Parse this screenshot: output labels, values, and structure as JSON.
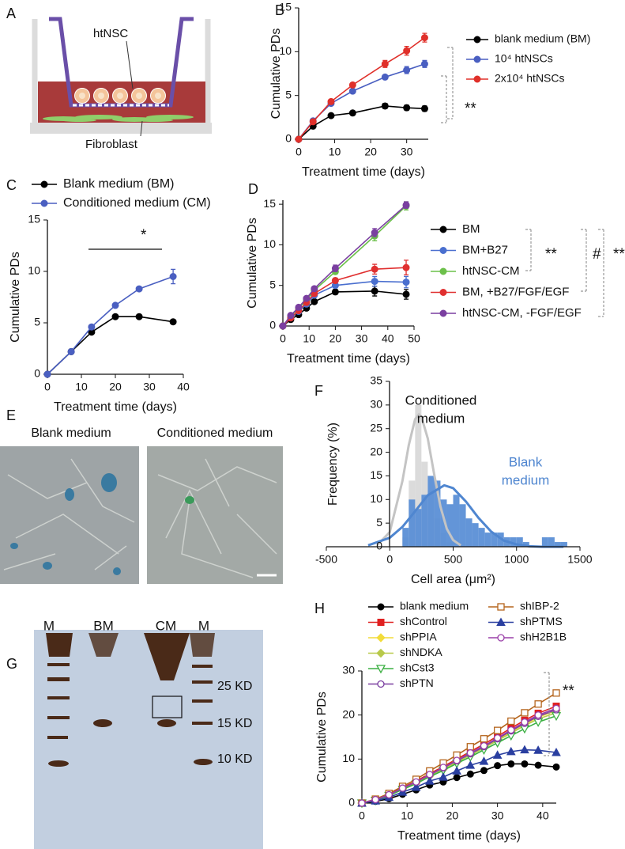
{
  "panel_labels": [
    "A",
    "B",
    "C",
    "D",
    "E",
    "F",
    "G",
    "H"
  ],
  "diagram": {
    "cell_label": "htNSC",
    "layer_label": "Fibroblast"
  },
  "micrographs": {
    "titles": [
      "Blank medium",
      "Conditioned medium"
    ]
  },
  "gel": {
    "lane_labels": [
      "M",
      "BM",
      "CM",
      "M"
    ],
    "marker_labels": [
      "25 KD",
      "15 KD",
      "10 KD"
    ]
  },
  "chart_data": [
    {
      "type": "line",
      "x": [
        0,
        4,
        9,
        15,
        24,
        30,
        35
      ],
      "xlim": [
        0,
        36
      ],
      "xticks": [
        0,
        10,
        20,
        30
      ],
      "ylim": [
        0,
        15
      ],
      "yticks": [
        0,
        5,
        10,
        15
      ],
      "xlabel": "Treatment time (days)",
      "ylabel": "Cumulative PDs",
      "annotations": [
        "**"
      ],
      "series": [
        {
          "name": "blank medium (BM)",
          "color": "#000000",
          "marker": "circle",
          "values": [
            0,
            1.5,
            2.7,
            3.0,
            3.8,
            3.6,
            3.5
          ],
          "errors": [
            0,
            0.1,
            0.1,
            0.2,
            0.3,
            0.3,
            0.3
          ]
        },
        {
          "name": "10⁴ htNSCs",
          "color": "#4a5fc1",
          "marker": "circle",
          "values": [
            0,
            2.1,
            4.1,
            5.5,
            7.1,
            7.9,
            8.6
          ],
          "errors": [
            0,
            0.1,
            0.2,
            0.2,
            0.2,
            0.4,
            0.4
          ]
        },
        {
          "name": "2x10⁴ htNSCs",
          "color": "#e0302a",
          "marker": "circle",
          "values": [
            0,
            2.0,
            4.3,
            6.2,
            8.6,
            10.1,
            11.6
          ],
          "errors": [
            0,
            0.1,
            0.2,
            0.2,
            0.4,
            0.5,
            0.5
          ]
        }
      ]
    },
    {
      "type": "line",
      "x": [
        0,
        7,
        13,
        20,
        27,
        37
      ],
      "xlim": [
        0,
        40
      ],
      "xticks": [
        0,
        10,
        20,
        30,
        40
      ],
      "ylim": [
        0,
        15
      ],
      "yticks": [
        0,
        5,
        10,
        15
      ],
      "xlabel": "Treatment time (days)",
      "ylabel": "Cumulative PDs",
      "annotations": [
        "*"
      ],
      "series": [
        {
          "name": "Blank medium (BM)",
          "color": "#000000",
          "marker": "circle",
          "values": [
            0,
            2.2,
            4.1,
            5.6,
            5.6,
            5.1
          ],
          "errors": [
            0,
            0.1,
            0.1,
            0.2,
            0.2,
            0.2
          ]
        },
        {
          "name": "Conditioned medium (CM)",
          "color": "#4a5fc1",
          "marker": "circle",
          "values": [
            0,
            2.2,
            4.6,
            6.7,
            8.3,
            9.5
          ],
          "errors": [
            0,
            0.1,
            0.2,
            0.2,
            0.2,
            0.7
          ]
        }
      ]
    },
    {
      "type": "line",
      "x": [
        0,
        3,
        6,
        9,
        12,
        20,
        35,
        47
      ],
      "xlim": [
        0,
        50
      ],
      "xticks": [
        0,
        10,
        20,
        30,
        40,
        50
      ],
      "ylim": [
        0,
        15.5
      ],
      "yticks": [
        0,
        5,
        10,
        15
      ],
      "xlabel": "Treatment time (days)",
      "ylabel": "Cumulative PDs",
      "annotations": [
        "**",
        "#",
        "**"
      ],
      "series": [
        {
          "name": "BM",
          "color": "#000000",
          "marker": "circle",
          "values": [
            0,
            0.8,
            1.4,
            2.2,
            3.0,
            4.2,
            4.3,
            3.9
          ],
          "errors": [
            0,
            0.1,
            0.1,
            0.1,
            0.2,
            0.3,
            0.6,
            0.6
          ]
        },
        {
          "name": "BM+B27",
          "color": "#4a6fcf",
          "marker": "circle",
          "values": [
            0,
            1.0,
            1.8,
            2.7,
            3.8,
            5.0,
            5.5,
            5.4
          ],
          "errors": [
            0,
            0.1,
            0.1,
            0.2,
            0.2,
            0.3,
            0.6,
            0.7
          ]
        },
        {
          "name": "htNSC-CM",
          "color": "#6cc04a",
          "marker": "circle",
          "values": [
            0,
            1.2,
            2.2,
            3.2,
            4.4,
            6.7,
            11.1,
            14.8
          ],
          "errors": [
            0,
            0.1,
            0.2,
            0.2,
            0.2,
            0.3,
            0.6,
            0.5
          ]
        },
        {
          "name": "BM, +B27/FGF/EGF",
          "color": "#e03030",
          "marker": "circle",
          "values": [
            0,
            1.0,
            1.9,
            2.9,
            4.0,
            5.6,
            7.0,
            7.2
          ],
          "errors": [
            0,
            0.1,
            0.1,
            0.2,
            0.2,
            0.3,
            0.6,
            0.9
          ]
        },
        {
          "name": "htNSC-CM, -FGF/EGF",
          "color": "#7a3fa0",
          "marker": "circle",
          "values": [
            0,
            1.3,
            2.3,
            3.4,
            4.6,
            7.1,
            11.5,
            14.9
          ],
          "errors": [
            0,
            0.1,
            0.2,
            0.2,
            0.2,
            0.4,
            0.5,
            0.4
          ]
        }
      ]
    },
    {
      "type": "histogram",
      "xlim": [
        -500,
        1500
      ],
      "xticks": [
        -500,
        0,
        500,
        1000,
        1500
      ],
      "ylim": [
        0,
        35
      ],
      "yticks": [
        0,
        5,
        10,
        15,
        20,
        25,
        30,
        35
      ],
      "xlabel": "Cell area (μm²)",
      "ylabel": "Frequency (%)",
      "series": [
        {
          "label": [
            "Conditioned",
            "medium"
          ],
          "color": "#d9d9d9",
          "line_color": "#c4c4c4",
          "text_color": "#111111",
          "bins": [
            100,
            150,
            200,
            250,
            300,
            350,
            400,
            450,
            500
          ],
          "counts": [
            2,
            14,
            30,
            18,
            12,
            6,
            3,
            1
          ],
          "fit_x": [
            -100,
            0,
            100,
            150,
            200,
            230,
            250,
            300,
            350,
            400,
            450,
            500,
            560
          ],
          "fit_values": [
            0.3,
            3.1,
            13.9,
            21.5,
            27,
            28,
            27.5,
            22.9,
            15.4,
            8.5,
            3.8,
            1.4,
            0.3
          ]
        },
        {
          "label": [
            "Blank",
            "medium"
          ],
          "color": "#5b8fd6",
          "line_color": "#4f86d0",
          "text_color": "#4f86d0",
          "bins": [
            100,
            150,
            200,
            250,
            300,
            350,
            400,
            450,
            500,
            550,
            600,
            650,
            700,
            750,
            800,
            850,
            900,
            950,
            1000,
            1050,
            1100,
            1150,
            1200,
            1250,
            1300,
            1350,
            1400
          ],
          "counts": [
            4,
            10,
            8,
            11,
            15,
            14,
            10,
            9,
            11,
            9,
            6,
            5,
            4,
            3,
            3,
            3,
            2,
            2,
            2,
            1,
            0,
            0,
            2,
            2,
            1,
            1
          ],
          "fit_x": [
            -170,
            0,
            100,
            200,
            300,
            430,
            500,
            600,
            700,
            800,
            900,
            1000,
            1100,
            1200,
            1370
          ],
          "fit_values": [
            0.3,
            1.9,
            4.2,
            7.5,
            10.9,
            13,
            12.4,
            9.6,
            6.1,
            3.2,
            1.3,
            0.5,
            0.1,
            0,
            0
          ]
        }
      ]
    },
    {
      "type": "line",
      "x": [
        0,
        3,
        6,
        9,
        12,
        15,
        18,
        21,
        24,
        27,
        30,
        33,
        36,
        39,
        43
      ],
      "xlim": [
        0,
        43
      ],
      "xticks": [
        0,
        10,
        20,
        30,
        40
      ],
      "ylim": [
        0,
        30
      ],
      "yticks": [
        0,
        10,
        20,
        30
      ],
      "xlabel": "Treatment time (days)",
      "ylabel": "Cumulative PDs",
      "annotations": [
        "**"
      ],
      "series": [
        {
          "name": "blank medium",
          "color": "#000000",
          "marker": "circle",
          "values": [
            0,
            0.4,
            1.0,
            2.0,
            3.0,
            4.1,
            4.8,
            5.8,
            6.6,
            7.4,
            8.5,
            8.9,
            8.9,
            8.6,
            8.2
          ]
        },
        {
          "name": "shControl",
          "color": "#e02020",
          "marker": "square",
          "values": [
            0,
            0.8,
            2.0,
            3.5,
            5.0,
            6.7,
            8.3,
            10.0,
            11.7,
            13.4,
            15.2,
            17.0,
            18.8,
            20.4,
            22
          ]
        },
        {
          "name": "shPPIA",
          "color": "#f2dc3a",
          "marker": "diamond",
          "values": [
            0,
            0.7,
            1.8,
            3.3,
            4.7,
            6.3,
            7.9,
            9.5,
            11.1,
            12.7,
            14.4,
            16.2,
            17.9,
            19.5,
            21
          ]
        },
        {
          "name": "shNDKA",
          "color": "#b8c94a",
          "marker": "diamond",
          "values": [
            0,
            0.7,
            1.8,
            3.2,
            4.6,
            6.2,
            7.7,
            9.3,
            10.9,
            12.5,
            14.2,
            15.9,
            17.6,
            19.1,
            20.5
          ]
        },
        {
          "name": "shCst3",
          "color": "#3cb043",
          "marker": "triangle-down-open",
          "values": [
            0,
            0.6,
            1.7,
            3.1,
            4.4,
            6.0,
            7.4,
            9.0,
            10.5,
            12.1,
            13.7,
            15.3,
            16.9,
            18.4,
            19.8
          ]
        },
        {
          "name": "shPTN",
          "color": "#7a3fa0",
          "marker": "circle-open",
          "values": [
            0,
            0.7,
            1.9,
            3.4,
            4.8,
            6.4,
            8.0,
            9.6,
            11.2,
            12.8,
            14.6,
            16.4,
            18.1,
            19.7,
            21.2
          ]
        },
        {
          "name": "shIBP-2",
          "color": "#b5651d",
          "marker": "square-open",
          "values": [
            0,
            0.9,
            2.2,
            3.8,
            5.4,
            7.3,
            9.1,
            10.9,
            12.8,
            14.6,
            16.5,
            18.6,
            20.5,
            22.5,
            25
          ]
        },
        {
          "name": "shPTMS",
          "color": "#2a3fa0",
          "marker": "triangle-up",
          "values": [
            0,
            0.5,
            1.3,
            2.5,
            3.6,
            5.0,
            5.9,
            7.3,
            8.6,
            9.5,
            10.9,
            11.7,
            12.1,
            12.0,
            11.5
          ]
        },
        {
          "name": "shH2B1B",
          "color": "#9a3fa8",
          "marker": "circle-open",
          "values": [
            0,
            0.8,
            1.9,
            3.4,
            4.8,
            6.5,
            8.1,
            9.7,
            11.4,
            13.0,
            14.8,
            16.6,
            18.4,
            20.0,
            21.5
          ]
        }
      ]
    }
  ]
}
